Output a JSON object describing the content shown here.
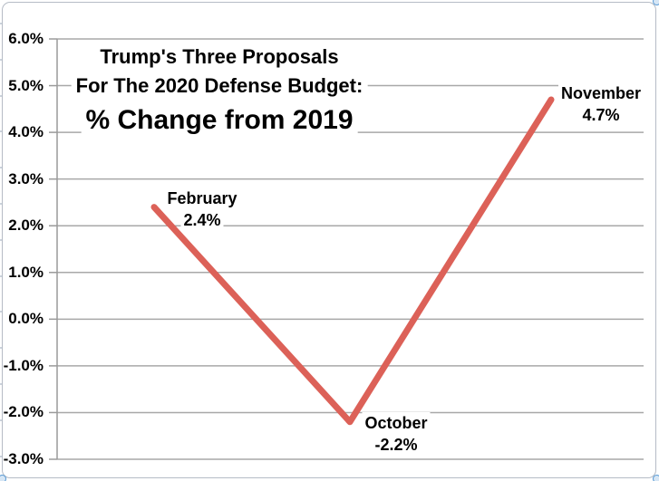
{
  "chart_data": {
    "type": "line",
    "title_lines": [
      "Trump's Three Proposals",
      "For The 2020 Defense Budget:",
      "% Change from 2019"
    ],
    "categories": [
      "February",
      "October",
      "November"
    ],
    "values": [
      2.4,
      -2.2,
      4.7
    ],
    "points": [
      {
        "name": "February",
        "value": 2.4,
        "value_text": "2.4%"
      },
      {
        "name": "October",
        "value": -2.2,
        "value_text": "-2.2%"
      },
      {
        "name": "November",
        "value": 4.7,
        "value_text": "4.7%"
      }
    ],
    "yticks": [
      {
        "value": 6,
        "label": "6.0%"
      },
      {
        "value": 5,
        "label": "5.0%"
      },
      {
        "value": 4,
        "label": "4.0%"
      },
      {
        "value": 3,
        "label": "3.0%"
      },
      {
        "value": 2,
        "label": "2.0%"
      },
      {
        "value": 1,
        "label": "1.0%"
      },
      {
        "value": 0,
        "label": "0.0%"
      },
      {
        "value": -1,
        "label": "-1.0%"
      },
      {
        "value": -2,
        "label": "-2.0%"
      },
      {
        "value": -3,
        "label": "-3.0%"
      }
    ],
    "ylim": [
      -3,
      6
    ],
    "xlabel": "",
    "ylabel": "",
    "grid": true,
    "legend": "none",
    "colors": {
      "line": "#dc6158",
      "gridline": "#a8a8a8",
      "axis": "#9a9a9a",
      "text": "#000000",
      "background": "#ffffff",
      "chart_border": "#b6bcc6",
      "selection_handle": "#5b9bd5"
    }
  }
}
